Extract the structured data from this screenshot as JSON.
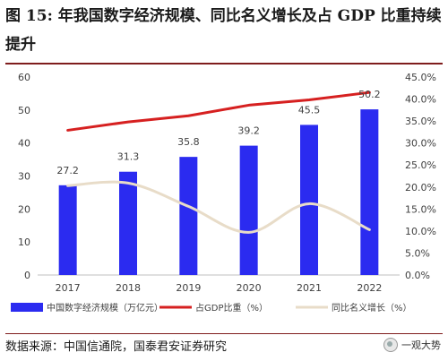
{
  "header": {
    "title": "图 15: 年我国数字经济规模、同比名义增长及占 GDP 比重持续提升"
  },
  "footer": {
    "source": "数据来源：中国信通院，国泰君安证券研究",
    "watermark": "一观大势"
  },
  "chart_data": {
    "type": "bar",
    "categories": [
      "2017",
      "2018",
      "2019",
      "2020",
      "2021",
      "2022"
    ],
    "y_left": {
      "lim": [
        0,
        60
      ],
      "ticks": [
        "0",
        "10",
        "20",
        "30",
        "40",
        "50",
        "60"
      ]
    },
    "y_right": {
      "lim": [
        0,
        45
      ],
      "ticks": [
        "0.0%",
        "5.0%",
        "10.0%",
        "15.0%",
        "20.0%",
        "25.0%",
        "30.0%",
        "35.0%",
        "40.0%",
        "45.0%"
      ]
    },
    "grid": false,
    "legend_position": "bottom",
    "series": [
      {
        "name": "中国数字经济规模（万亿元）",
        "type": "bar",
        "axis": "left",
        "color": "#2b2bf0",
        "values": [
          27.2,
          31.3,
          35.8,
          39.2,
          45.5,
          50.2
        ],
        "labels": [
          "27.2",
          "31.3",
          "35.8",
          "39.2",
          "45.5",
          "50.2"
        ]
      },
      {
        "name": "占GDP比重（%）",
        "type": "line",
        "axis": "right",
        "color": "#d62020",
        "values": [
          32.9,
          34.8,
          36.2,
          38.6,
          39.8,
          41.5
        ]
      },
      {
        "name": "同比名义增长（%）",
        "type": "line",
        "axis": "right",
        "color": "#e8dcc8",
        "smooth": true,
        "values": [
          20.3,
          20.9,
          15.6,
          9.7,
          16.2,
          10.3
        ]
      }
    ]
  }
}
